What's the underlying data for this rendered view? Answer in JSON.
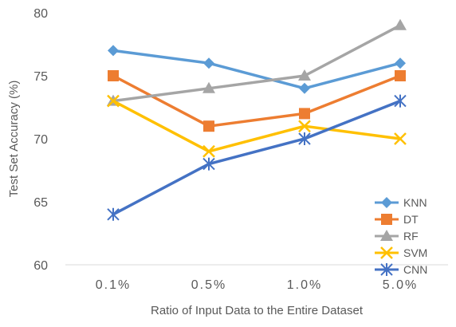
{
  "chart_data": {
    "type": "line",
    "categories": [
      "0.1%",
      "0.5%",
      "1.0%",
      "5.0%"
    ],
    "series": [
      {
        "name": "KNN",
        "values": [
          77,
          76,
          74,
          76
        ],
        "color": "#5b9bd5",
        "marker": "diamond"
      },
      {
        "name": "DT",
        "values": [
          75,
          71,
          72,
          75
        ],
        "color": "#ed7d31",
        "marker": "square"
      },
      {
        "name": "RF",
        "values": [
          73,
          74,
          75,
          79
        ],
        "color": "#a5a5a5",
        "marker": "triangle"
      },
      {
        "name": "SVM",
        "values": [
          73,
          69,
          71,
          70
        ],
        "color": "#ffc000",
        "marker": "x"
      },
      {
        "name": "CNN",
        "values": [
          64,
          68,
          70,
          73
        ],
        "color": "#4472c4",
        "marker": "star"
      }
    ],
    "xlabel": "Ratio of Input Data to the Entire Dataset",
    "ylabel": "Test Set Accuracy (%)",
    "ylim": [
      60,
      80
    ],
    "yticks": [
      60,
      65,
      70,
      75,
      80
    ],
    "grid": false,
    "legend_position": "bottom-right"
  }
}
